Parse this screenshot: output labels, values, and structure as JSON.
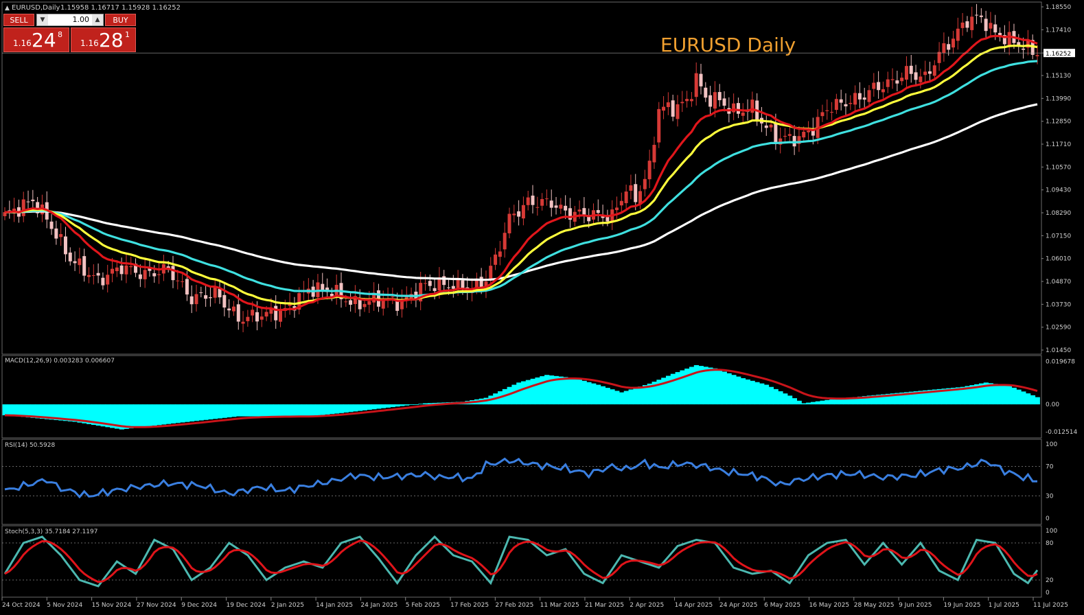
{
  "header": {
    "symbol_info": "EURUSD,Daily",
    "ohlc": "1.15958 1.16717 1.15928 1.16252",
    "title": "EURUSD Daily"
  },
  "trade_panel": {
    "sell_label": "SELL",
    "buy_label": "BUY",
    "lot": "1.00",
    "sell_small": "1.16",
    "sell_big": "24",
    "sell_sup": "8",
    "buy_small": "1.16",
    "buy_big": "28",
    "buy_sup": "1"
  },
  "colors": {
    "background": "#000000",
    "grid": "#3a3a3a",
    "text": "#d0d0d0",
    "bull_candle": "#d63a36",
    "bear_candle": "#f2c2c2",
    "ma_fast": "#e0161b",
    "ma_mid": "#ffff3c",
    "ma_slow": "#3fe0e0",
    "ma_long": "#ffffff",
    "macd_hist": "#00ffff",
    "macd_signal": "#c8141a",
    "rsi": "#3a7fe0",
    "stoch_main": "#4cb8b0",
    "stoch_signal": "#e0141a",
    "title": "#f0a030"
  },
  "chart_data": [
    {
      "type": "candlestick",
      "name": "price",
      "symbol": "EURUSD",
      "timeframe": "Daily",
      "current_price": "1.16252",
      "y_ticks": [
        "1.18550",
        "1.17410",
        "1.16252",
        "1.15130",
        "1.13990",
        "1.12850",
        "1.11710",
        "1.10570",
        "1.09430",
        "1.08290",
        "1.07150",
        "1.06010",
        "1.04870",
        "1.03730",
        "1.02590",
        "1.01450"
      ],
      "ylim": [
        1.0145,
        1.1855
      ],
      "x_ticks": [
        "24 Oct 2024",
        "5 Nov 2024",
        "15 Nov 2024",
        "27 Nov 2024",
        "9 Dec 2024",
        "19 Dec 2024",
        "2 Jan 2025",
        "14 Jan 2025",
        "24 Jan 2025",
        "5 Feb 2025",
        "17 Feb 2025",
        "27 Feb 2025",
        "11 Mar 2025",
        "21 Mar 2025",
        "2 Apr 2025",
        "14 Apr 2025",
        "24 Apr 2025",
        "6 May 2025",
        "16 May 2025",
        "28 May 2025",
        "9 Jun 2025",
        "19 Jun 2025",
        "1 Jul 2025",
        "11 Jul 2025"
      ],
      "close_anchors": [
        [
          0,
          1.0815
        ],
        [
          6,
          1.089
        ],
        [
          9,
          1.08
        ],
        [
          14,
          1.06
        ],
        [
          20,
          1.049
        ],
        [
          25,
          1.056
        ],
        [
          30,
          1.052
        ],
        [
          35,
          1.055
        ],
        [
          40,
          1.04
        ],
        [
          45,
          1.043
        ],
        [
          50,
          1.03
        ],
        [
          55,
          1.032
        ],
        [
          60,
          1.034
        ],
        [
          65,
          1.045
        ],
        [
          70,
          1.044
        ],
        [
          75,
          1.037
        ],
        [
          80,
          1.04
        ],
        [
          85,
          1.038
        ],
        [
          90,
          1.047
        ],
        [
          95,
          1.047
        ],
        [
          100,
          1.045
        ],
        [
          103,
          1.05
        ],
        [
          105,
          1.06
        ],
        [
          108,
          1.08
        ],
        [
          112,
          1.088
        ],
        [
          117,
          1.088
        ],
        [
          120,
          1.083
        ],
        [
          125,
          1.082
        ],
        [
          130,
          1.081
        ],
        [
          133,
          1.095
        ],
        [
          135,
          1.09
        ],
        [
          138,
          1.105
        ],
        [
          140,
          1.135
        ],
        [
          143,
          1.135
        ],
        [
          146,
          1.138
        ],
        [
          148,
          1.15
        ],
        [
          150,
          1.14
        ],
        [
          153,
          1.139
        ],
        [
          156,
          1.133
        ],
        [
          160,
          1.135
        ],
        [
          163,
          1.125
        ],
        [
          166,
          1.12
        ],
        [
          170,
          1.12
        ],
        [
          173,
          1.125
        ],
        [
          176,
          1.135
        ],
        [
          180,
          1.138
        ],
        [
          183,
          1.14
        ],
        [
          186,
          1.145
        ],
        [
          190,
          1.148
        ],
        [
          193,
          1.153
        ],
        [
          197,
          1.15
        ],
        [
          200,
          1.162
        ],
        [
          203,
          1.17
        ],
        [
          206,
          1.179
        ],
        [
          209,
          1.18
        ],
        [
          212,
          1.172
        ],
        [
          215,
          1.169
        ],
        [
          218,
          1.166
        ],
        [
          221,
          1.1625
        ]
      ],
      "moving_averages": [
        {
          "name": "ma_fast",
          "color": "#e0161b",
          "smoothing_factor": 0.13
        },
        {
          "name": "ma_mid",
          "color": "#ffff3c",
          "smoothing_factor": 0.08
        },
        {
          "name": "ma_slow",
          "color": "#3fe0e0",
          "smoothing_factor": 0.045
        },
        {
          "name": "ma_long",
          "color": "#ffffff",
          "smoothing_factor": 0.02
        }
      ]
    },
    {
      "type": "histogram+line",
      "name": "macd",
      "label": "MACD(12,26,9) 0.003283 0.006607",
      "y_ticks": [
        "0.019678",
        "0.00",
        "-0.012514"
      ],
      "ylim": [
        -0.0135,
        0.0205
      ],
      "signal_smoothing_factor": 0.18,
      "hist_anchors": [
        [
          0,
          -0.005
        ],
        [
          15,
          -0.008
        ],
        [
          25,
          -0.0115
        ],
        [
          35,
          -0.009
        ],
        [
          50,
          -0.0055
        ],
        [
          65,
          -0.0055
        ],
        [
          72,
          -0.004
        ],
        [
          80,
          -0.002
        ],
        [
          90,
          0.0005
        ],
        [
          98,
          0.0012
        ],
        [
          103,
          0.003
        ],
        [
          110,
          0.01
        ],
        [
          116,
          0.0135
        ],
        [
          122,
          0.012
        ],
        [
          127,
          0.009
        ],
        [
          132,
          0.0055
        ],
        [
          138,
          0.0095
        ],
        [
          143,
          0.014
        ],
        [
          148,
          0.018
        ],
        [
          152,
          0.0165
        ],
        [
          158,
          0.012
        ],
        [
          163,
          0.009
        ],
        [
          168,
          0.004
        ],
        [
          171,
          0.0005
        ],
        [
          176,
          0.002
        ],
        [
          185,
          0.004
        ],
        [
          195,
          0.006
        ],
        [
          205,
          0.008
        ],
        [
          210,
          0.01
        ],
        [
          215,
          0.0085
        ],
        [
          221,
          0.0033
        ]
      ]
    },
    {
      "type": "line",
      "name": "rsi",
      "label": "RSI(14) 50.5928",
      "y_ticks": [
        "100",
        "70",
        "30",
        "0"
      ],
      "ylim": [
        0,
        100
      ],
      "levels": [
        70,
        30
      ],
      "anchors": [
        [
          0,
          37
        ],
        [
          6,
          47
        ],
        [
          9,
          52
        ],
        [
          12,
          40
        ],
        [
          18,
          30
        ],
        [
          23,
          37
        ],
        [
          28,
          42
        ],
        [
          35,
          47
        ],
        [
          42,
          44
        ],
        [
          48,
          33
        ],
        [
          55,
          42
        ],
        [
          60,
          37
        ],
        [
          65,
          44
        ],
        [
          70,
          50
        ],
        [
          75,
          58
        ],
        [
          80,
          55
        ],
        [
          85,
          57
        ],
        [
          90,
          59
        ],
        [
          93,
          55
        ],
        [
          96,
          56
        ],
        [
          100,
          53
        ],
        [
          103,
          72
        ],
        [
          108,
          78
        ],
        [
          114,
          72
        ],
        [
          120,
          67
        ],
        [
          125,
          60
        ],
        [
          130,
          70
        ],
        [
          133,
          66
        ],
        [
          137,
          75
        ],
        [
          140,
          68
        ],
        [
          145,
          74
        ],
        [
          150,
          70
        ],
        [
          154,
          63
        ],
        [
          158,
          60
        ],
        [
          162,
          55
        ],
        [
          166,
          45
        ],
        [
          170,
          52
        ],
        [
          176,
          58
        ],
        [
          182,
          60
        ],
        [
          188,
          55
        ],
        [
          195,
          58
        ],
        [
          200,
          65
        ],
        [
          205,
          68
        ],
        [
          210,
          77
        ],
        [
          214,
          64
        ],
        [
          218,
          55
        ],
        [
          221,
          51
        ]
      ]
    },
    {
      "type": "line",
      "name": "stochastic",
      "label": "Stoch(5,3,3) 35.7184 27.1197",
      "y_ticks": [
        "100",
        "80",
        "20",
        "0"
      ],
      "ylim": [
        0,
        100
      ],
      "levels": [
        80,
        20
      ],
      "main_anchors": [
        [
          0,
          30
        ],
        [
          4,
          80
        ],
        [
          8,
          90
        ],
        [
          12,
          60
        ],
        [
          16,
          20
        ],
        [
          20,
          10
        ],
        [
          24,
          50
        ],
        [
          28,
          30
        ],
        [
          32,
          85
        ],
        [
          36,
          70
        ],
        [
          40,
          20
        ],
        [
          44,
          40
        ],
        [
          48,
          80
        ],
        [
          52,
          60
        ],
        [
          56,
          20
        ],
        [
          60,
          40
        ],
        [
          64,
          50
        ],
        [
          68,
          40
        ],
        [
          72,
          80
        ],
        [
          76,
          90
        ],
        [
          80,
          55
        ],
        [
          84,
          15
        ],
        [
          88,
          60
        ],
        [
          92,
          90
        ],
        [
          96,
          60
        ],
        [
          100,
          50
        ],
        [
          104,
          15
        ],
        [
          108,
          90
        ],
        [
          112,
          85
        ],
        [
          116,
          60
        ],
        [
          120,
          70
        ],
        [
          124,
          30
        ],
        [
          128,
          15
        ],
        [
          132,
          60
        ],
        [
          136,
          50
        ],
        [
          140,
          40
        ],
        [
          144,
          75
        ],
        [
          148,
          85
        ],
        [
          152,
          80
        ],
        [
          156,
          40
        ],
        [
          160,
          30
        ],
        [
          164,
          35
        ],
        [
          168,
          15
        ],
        [
          172,
          60
        ],
        [
          176,
          80
        ],
        [
          180,
          85
        ],
        [
          184,
          45
        ],
        [
          188,
          80
        ],
        [
          192,
          45
        ],
        [
          196,
          80
        ],
        [
          200,
          35
        ],
        [
          204,
          20
        ],
        [
          208,
          85
        ],
        [
          212,
          80
        ],
        [
          216,
          30
        ],
        [
          219,
          15
        ],
        [
          221,
          36
        ]
      ],
      "signal_smoothing_factor": 0.35
    }
  ]
}
